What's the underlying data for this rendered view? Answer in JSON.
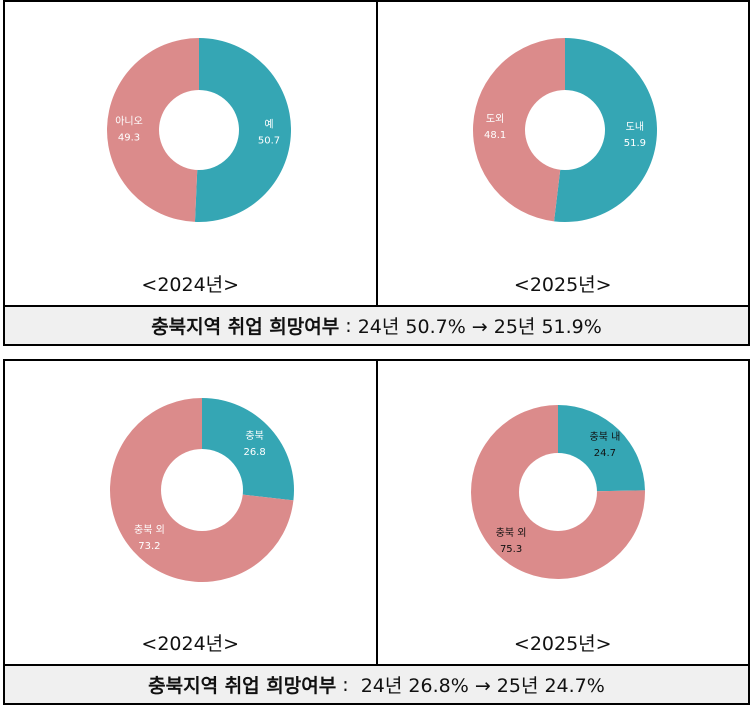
{
  "colors": {
    "teal": "#35a6b4",
    "pink": "#db8b8b",
    "border": "#000000",
    "caption_bg": "#f0f0f0"
  },
  "panels": [
    {
      "caption": {
        "title": "충북지역 취업 희망여부",
        "sep": " : ",
        "value": "24년 50.7% → 25년 51.9%"
      },
      "charts": [
        {
          "year_label": "<2024년>",
          "segments": [
            {
              "label": "예",
              "value": "50.7"
            },
            {
              "label": "아니오",
              "value": "49.3"
            }
          ]
        },
        {
          "year_label": "<2025년>",
          "segments": [
            {
              "label": "도내",
              "value": "51.9"
            },
            {
              "label": "도외",
              "value": "48.1"
            }
          ]
        }
      ]
    },
    {
      "caption": {
        "title": "충북지역 취업 희망여부",
        "sep": " :  ",
        "value": "24년 26.8% → 25년 24.7%"
      },
      "charts": [
        {
          "year_label": "<2024년>",
          "segments": [
            {
              "label": "충북",
              "value": "26.8"
            },
            {
              "label": "충북 외",
              "value": "73.2"
            }
          ]
        },
        {
          "year_label": "<2025년>",
          "segments": [
            {
              "label": "충북 내",
              "value": "24.7"
            },
            {
              "label": "충북 외",
              "value": "75.3"
            }
          ]
        }
      ]
    }
  ],
  "chart_data": [
    {
      "type": "pie",
      "title": "<2024년>",
      "categories": [
        "예",
        "아니오"
      ],
      "values": [
        50.7,
        49.3
      ],
      "donut": true
    },
    {
      "type": "pie",
      "title": "<2025년>",
      "categories": [
        "도내",
        "도외"
      ],
      "values": [
        51.9,
        48.1
      ],
      "donut": true
    },
    {
      "type": "pie",
      "title": "<2024년>",
      "categories": [
        "충북",
        "충북 외"
      ],
      "values": [
        26.8,
        73.2
      ],
      "donut": true
    },
    {
      "type": "pie",
      "title": "<2025년>",
      "categories": [
        "충북 내",
        "충북 외"
      ],
      "values": [
        24.7,
        75.3
      ],
      "donut": true
    }
  ]
}
